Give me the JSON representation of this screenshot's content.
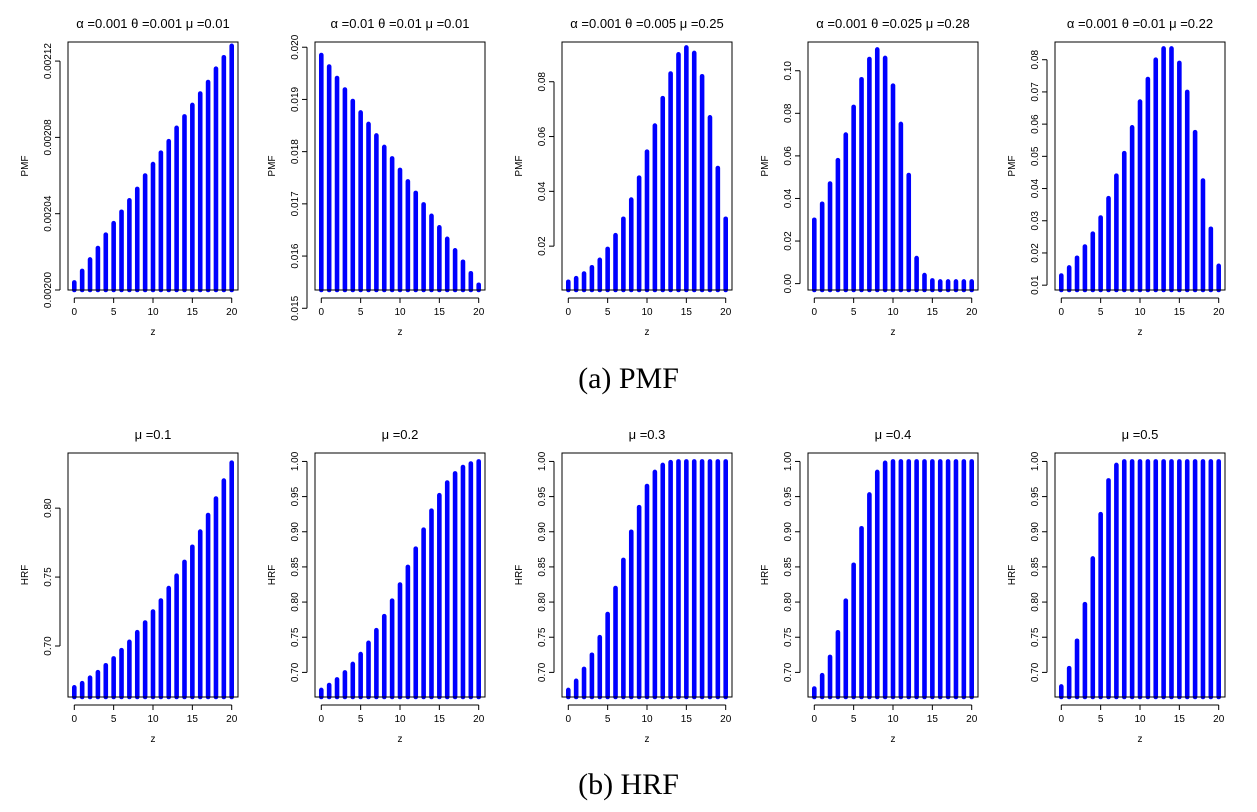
{
  "captions": {
    "a": "(a) PMF",
    "b": "(b) HRF"
  },
  "style": {
    "bar_color": "#0000ff",
    "axis_color": "#000000"
  },
  "chart_data": [
    {
      "type": "bar",
      "row": "a",
      "title": "α =0.001  θ =0.001  μ =0.01",
      "xlabel": "z",
      "ylabel": "PMF",
      "x": [
        0,
        1,
        2,
        3,
        4,
        5,
        6,
        7,
        8,
        9,
        10,
        11,
        12,
        13,
        14,
        15,
        16,
        17,
        18,
        19,
        20
      ],
      "values": [
        0.002004,
        0.00201,
        0.002016,
        0.002022,
        0.002029,
        0.002035,
        0.002041,
        0.002047,
        0.002053,
        0.00206,
        0.002066,
        0.002072,
        0.002078,
        0.002085,
        0.002091,
        0.002097,
        0.002103,
        0.002109,
        0.002116,
        0.002122,
        0.002128
      ],
      "ylim": [
        0.002,
        0.00213
      ],
      "yticks": [
        0.002,
        0.00204,
        0.00208,
        0.00212
      ],
      "ytick_labels": [
        "0.00200",
        "0.00204",
        "0.00208",
        "0.00212"
      ],
      "xticks": [
        0,
        5,
        10,
        15,
        20
      ],
      "xtick_labels": [
        "0",
        "5",
        "10",
        "15",
        "20"
      ]
    },
    {
      "type": "bar",
      "row": "a",
      "title": "α =0.01  θ =0.01  μ =0.01",
      "xlabel": "z",
      "ylabel": "PMF",
      "x": [
        0,
        1,
        2,
        3,
        4,
        5,
        6,
        7,
        8,
        9,
        10,
        11,
        12,
        13,
        14,
        15,
        16,
        17,
        18,
        19,
        20
      ],
      "values": [
        0.01985,
        0.01963,
        0.01941,
        0.01919,
        0.01897,
        0.01875,
        0.01853,
        0.01831,
        0.01809,
        0.01787,
        0.01765,
        0.01743,
        0.01721,
        0.01699,
        0.01677,
        0.01655,
        0.01633,
        0.01611,
        0.01589,
        0.01567,
        0.01545
      ],
      "ylim": [
        0.01535,
        0.0201
      ],
      "yticks": [
        0.015,
        0.016,
        0.017,
        0.018,
        0.019,
        0.02
      ],
      "ytick_labels": [
        "0.015",
        "0.016",
        "0.017",
        "0.018",
        "0.019",
        "0.020"
      ],
      "xticks": [
        0,
        5,
        10,
        15,
        20
      ],
      "xtick_labels": [
        "0",
        "5",
        "10",
        "15",
        "20"
      ]
    },
    {
      "type": "bar",
      "row": "a",
      "title": "α =0.001  θ =0.005  μ =0.25",
      "xlabel": "z",
      "ylabel": "PMF",
      "x": [
        0,
        1,
        2,
        3,
        4,
        5,
        6,
        7,
        8,
        9,
        10,
        11,
        12,
        13,
        14,
        15,
        16,
        17,
        18,
        19,
        20
      ],
      "values": [
        0.007,
        0.0083,
        0.01,
        0.0123,
        0.015,
        0.019,
        0.024,
        0.03,
        0.037,
        0.045,
        0.0545,
        0.064,
        0.074,
        0.083,
        0.09,
        0.0925,
        0.0905,
        0.082,
        0.067,
        0.0485,
        0.03
      ],
      "ylim": [
        0.004,
        0.0945
      ],
      "yticks": [
        0.02,
        0.04,
        0.06,
        0.08
      ],
      "ytick_labels": [
        "0.02",
        "0.04",
        "0.06",
        "0.08"
      ],
      "xticks": [
        0,
        5,
        10,
        15,
        20
      ],
      "xtick_labels": [
        "0",
        "5",
        "10",
        "15",
        "20"
      ]
    },
    {
      "type": "bar",
      "row": "a",
      "title": "α =0.001  θ =0.025  μ =0.28",
      "xlabel": "z",
      "ylabel": "PMF",
      "x": [
        0,
        1,
        2,
        3,
        4,
        5,
        6,
        7,
        8,
        9,
        10,
        11,
        12,
        13,
        14,
        15,
        16,
        17,
        18,
        19,
        20
      ],
      "values": [
        0.03,
        0.0375,
        0.047,
        0.058,
        0.07,
        0.083,
        0.096,
        0.1055,
        0.11,
        0.106,
        0.093,
        0.075,
        0.051,
        0.012,
        0.004,
        0.0015,
        0.001,
        0.001,
        0.001,
        0.001,
        0.001
      ],
      "ylim": [
        -0.003,
        0.1135
      ],
      "yticks": [
        0.0,
        0.02,
        0.04,
        0.06,
        0.08,
        0.1
      ],
      "ytick_labels": [
        "0.00",
        "0.02",
        "0.04",
        "0.06",
        "0.08",
        "0.10"
      ],
      "xticks": [
        0,
        5,
        10,
        15,
        20
      ],
      "xtick_labels": [
        "0",
        "5",
        "10",
        "15",
        "20"
      ]
    },
    {
      "type": "bar",
      "row": "a",
      "title": "α =0.001  θ =0.01  μ =0.22",
      "xlabel": "z",
      "ylabel": "PMF",
      "x": [
        0,
        1,
        2,
        3,
        4,
        5,
        6,
        7,
        8,
        9,
        10,
        11,
        12,
        13,
        14,
        15,
        16,
        17,
        18,
        19,
        20
      ],
      "values": [
        0.013,
        0.0155,
        0.0185,
        0.022,
        0.026,
        0.031,
        0.037,
        0.044,
        0.051,
        0.059,
        0.067,
        0.074,
        0.08,
        0.0835,
        0.0835,
        0.079,
        0.07,
        0.0575,
        0.0425,
        0.0275,
        0.016
      ],
      "ylim": [
        0.0085,
        0.0855
      ],
      "yticks": [
        0.01,
        0.02,
        0.03,
        0.04,
        0.05,
        0.06,
        0.07,
        0.08
      ],
      "ytick_labels": [
        "0.01",
        "0.02",
        "0.03",
        "0.04",
        "0.05",
        "0.06",
        "0.07",
        "0.08"
      ],
      "xticks": [
        0,
        5,
        10,
        15,
        20
      ],
      "xtick_labels": [
        "0",
        "5",
        "10",
        "15",
        "20"
      ]
    },
    {
      "type": "bar",
      "row": "b",
      "title": "μ =0.1",
      "xlabel": "z",
      "ylabel": "HRF",
      "x": [
        0,
        1,
        2,
        3,
        4,
        5,
        6,
        7,
        8,
        9,
        10,
        11,
        12,
        13,
        14,
        15,
        16,
        17,
        18,
        19,
        20
      ],
      "values": [
        0.67,
        0.673,
        0.677,
        0.681,
        0.686,
        0.691,
        0.697,
        0.703,
        0.71,
        0.717,
        0.725,
        0.733,
        0.742,
        0.751,
        0.761,
        0.772,
        0.783,
        0.795,
        0.807,
        0.82,
        0.833
      ],
      "ylim": [
        0.663,
        0.84
      ],
      "yticks": [
        0.7,
        0.75,
        0.8
      ],
      "ytick_labels": [
        "0.70",
        "0.75",
        "0.80"
      ],
      "xticks": [
        0,
        5,
        10,
        15,
        20
      ],
      "xtick_labels": [
        "0",
        "5",
        "10",
        "15",
        "20"
      ]
    },
    {
      "type": "bar",
      "row": "b",
      "title": "μ =0.2",
      "xlabel": "z",
      "ylabel": "HRF",
      "x": [
        0,
        1,
        2,
        3,
        4,
        5,
        6,
        7,
        8,
        9,
        10,
        11,
        12,
        13,
        14,
        15,
        16,
        17,
        18,
        19,
        20
      ],
      "values": [
        0.675,
        0.682,
        0.69,
        0.7,
        0.712,
        0.726,
        0.742,
        0.76,
        0.78,
        0.802,
        0.825,
        0.85,
        0.876,
        0.903,
        0.93,
        0.952,
        0.97,
        0.983,
        0.992,
        0.997,
        1.0
      ],
      "ylim": [
        0.665,
        1.012
      ],
      "yticks": [
        0.7,
        0.75,
        0.8,
        0.85,
        0.9,
        0.95,
        1.0
      ],
      "ytick_labels": [
        "0.70",
        "0.75",
        "0.80",
        "0.85",
        "0.90",
        "0.95",
        "1.00"
      ],
      "xticks": [
        0,
        5,
        10,
        15,
        20
      ],
      "xtick_labels": [
        "0",
        "5",
        "10",
        "15",
        "20"
      ]
    },
    {
      "type": "bar",
      "row": "b",
      "title": "μ =0.3",
      "xlabel": "z",
      "ylabel": "HRF",
      "x": [
        0,
        1,
        2,
        3,
        4,
        5,
        6,
        7,
        8,
        9,
        10,
        11,
        12,
        13,
        14,
        15,
        16,
        17,
        18,
        19,
        20
      ],
      "values": [
        0.675,
        0.688,
        0.705,
        0.725,
        0.75,
        0.783,
        0.82,
        0.86,
        0.9,
        0.935,
        0.965,
        0.985,
        0.995,
        0.999,
        1.0,
        1.0,
        1.0,
        1.0,
        1.0,
        1.0,
        1.0
      ],
      "ylim": [
        0.665,
        1.012
      ],
      "yticks": [
        0.7,
        0.75,
        0.8,
        0.85,
        0.9,
        0.95,
        1.0
      ],
      "ytick_labels": [
        "0.70",
        "0.75",
        "0.80",
        "0.85",
        "0.90",
        "0.95",
        "1.00"
      ],
      "xticks": [
        0,
        5,
        10,
        15,
        20
      ],
      "xtick_labels": [
        "0",
        "5",
        "10",
        "15",
        "20"
      ]
    },
    {
      "type": "bar",
      "row": "b",
      "title": "μ =0.4",
      "xlabel": "z",
      "ylabel": "HRF",
      "x": [
        0,
        1,
        2,
        3,
        4,
        5,
        6,
        7,
        8,
        9,
        10,
        11,
        12,
        13,
        14,
        15,
        16,
        17,
        18,
        19,
        20
      ],
      "values": [
        0.677,
        0.696,
        0.722,
        0.757,
        0.802,
        0.853,
        0.905,
        0.953,
        0.985,
        0.998,
        1.0,
        1.0,
        1.0,
        1.0,
        1.0,
        1.0,
        1.0,
        1.0,
        1.0,
        1.0,
        1.0
      ],
      "ylim": [
        0.665,
        1.012
      ],
      "yticks": [
        0.7,
        0.75,
        0.8,
        0.85,
        0.9,
        0.95,
        1.0
      ],
      "ytick_labels": [
        "0.70",
        "0.75",
        "0.80",
        "0.85",
        "0.90",
        "0.95",
        "1.00"
      ],
      "xticks": [
        0,
        5,
        10,
        15,
        20
      ],
      "xtick_labels": [
        "0",
        "5",
        "10",
        "15",
        "20"
      ]
    },
    {
      "type": "bar",
      "row": "b",
      "title": "μ =0.5",
      "xlabel": "z",
      "ylabel": "HRF",
      "x": [
        0,
        1,
        2,
        3,
        4,
        5,
        6,
        7,
        8,
        9,
        10,
        11,
        12,
        13,
        14,
        15,
        16,
        17,
        18,
        19,
        20
      ],
      "values": [
        0.68,
        0.706,
        0.745,
        0.797,
        0.862,
        0.925,
        0.973,
        0.995,
        1.0,
        1.0,
        1.0,
        1.0,
        1.0,
        1.0,
        1.0,
        1.0,
        1.0,
        1.0,
        1.0,
        1.0,
        1.0
      ],
      "ylim": [
        0.665,
        1.012
      ],
      "yticks": [
        0.7,
        0.75,
        0.8,
        0.85,
        0.9,
        0.95,
        1.0
      ],
      "ytick_labels": [
        "0.70",
        "0.75",
        "0.80",
        "0.85",
        "0.90",
        "0.95",
        "1.00"
      ],
      "xticks": [
        0,
        5,
        10,
        15,
        20
      ],
      "xtick_labels": [
        "0",
        "5",
        "10",
        "15",
        "20"
      ]
    }
  ]
}
